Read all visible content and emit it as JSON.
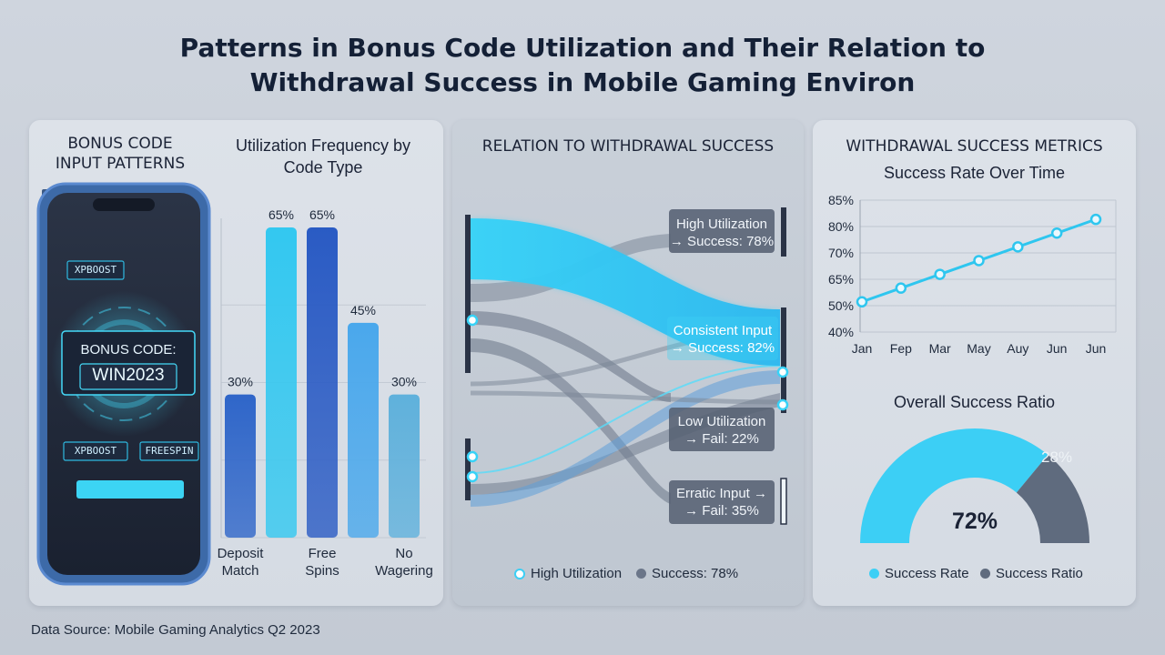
{
  "title_line1": "Patterns in Bonus Code Utilization and Their Relation to",
  "title_line2": "Withdrawal Success in Mobile Gaming Environ",
  "footer": "Data Source: Mobile Gaming Analytics Q2 2023",
  "panel1": {
    "heading_line1": "BONUS CODE",
    "heading_line2": "INPUT PATTERNS",
    "phone": {
      "chip_top": "XPBOOST",
      "code_label": "BONUS CODE:",
      "code_value": "WIN2023",
      "chip_left": "XPBOOST",
      "chip_right": "FREESPIN"
    }
  },
  "panel2": {
    "heading": "RELATION TO WITHDRAWAL SUCCESS",
    "nodes": [
      {
        "line1": "High Utilization",
        "line2": "→ Success: 78%"
      },
      {
        "line1": "Consistent Input",
        "line2": "→ Success: 82%"
      },
      {
        "line1": "Low Utilization",
        "line2": "→ Fail: 22%"
      },
      {
        "line1": "Erratic Input →",
        "line2": "→ Fail: 35%"
      }
    ],
    "legend": [
      {
        "label": "High Utilization",
        "color": "#3ccff5"
      },
      {
        "label": "Success: 78%",
        "color": "#6b7689"
      }
    ]
  },
  "panel3": {
    "heading": "WITHDRAWAL SUCCESS METRICS",
    "donut_title": "Overall Success Ratio",
    "donut_legend": [
      {
        "label": "Success Rate",
        "color": "#3ccff5"
      },
      {
        "label": "Success Ratio",
        "color": "#5f6b7e"
      }
    ]
  },
  "chart_data": [
    {
      "type": "bar",
      "title": "Utilization Frequency by Code Type",
      "categories": [
        "Deposit Match",
        "",
        "Free Spins",
        "",
        "No Wagering"
      ],
      "values": [
        30,
        65,
        65,
        45,
        30
      ],
      "data_labels": [
        "30%",
        "65%",
        "65%",
        "45%",
        "30%"
      ],
      "colors": [
        "#2f66c9",
        "#33c8f0",
        "#2a5bc4",
        "#4aa8ec",
        "#5fb1dc"
      ]
    },
    {
      "type": "line",
      "title": "Success Rate Over Time",
      "categories": [
        "Jan",
        "Fep",
        "Mar",
        "May",
        "Auy",
        "Jun",
        "Jun"
      ],
      "values": [
        51,
        56,
        61,
        66,
        71,
        76,
        81
      ],
      "ytick_labels": [
        "85%",
        "80%",
        "70%",
        "65%",
        "50%",
        "40%"
      ],
      "grid": true,
      "color": "#2ec6ef"
    },
    {
      "type": "pie",
      "title": "Overall Success Ratio",
      "slices": [
        {
          "label": "Success Rate",
          "value": 72,
          "text": "72%",
          "color": "#3ccff5"
        },
        {
          "label": "Success Ratio",
          "value": 28,
          "text": "28%",
          "color": "#5f6b7e"
        }
      ]
    }
  ]
}
